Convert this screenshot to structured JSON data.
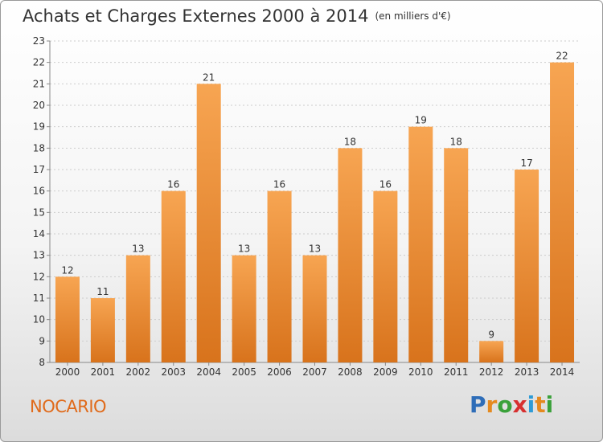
{
  "header": {
    "title": "Achats et Charges Externes 2000 à 2014",
    "subtitle": "(en milliers d'€)"
  },
  "footer": {
    "commune": "NOCARIO",
    "logo": [
      "P",
      "r",
      "o",
      "x",
      "i",
      "t",
      "i"
    ],
    "logo_colors": [
      "#2e6db8",
      "#e58a1f",
      "#3aa13a",
      "#d73030",
      "#2e9bd6",
      "#e58a1f",
      "#3aa13a"
    ]
  },
  "chart_data": {
    "type": "bar",
    "categories": [
      "2000",
      "2001",
      "2002",
      "2003",
      "2004",
      "2005",
      "2006",
      "2007",
      "2008",
      "2009",
      "2010",
      "2011",
      "2012",
      "2013",
      "2014"
    ],
    "values": [
      12,
      11,
      13,
      16,
      21,
      13,
      16,
      13,
      18,
      16,
      19,
      18,
      9,
      17,
      22
    ],
    "yticks": [
      8,
      9,
      10,
      11,
      12,
      13,
      14,
      15,
      16,
      17,
      18,
      19,
      20,
      21,
      22,
      23
    ],
    "ylim": [
      8,
      23
    ],
    "grid": true,
    "bar_color": "#f08a2a"
  }
}
